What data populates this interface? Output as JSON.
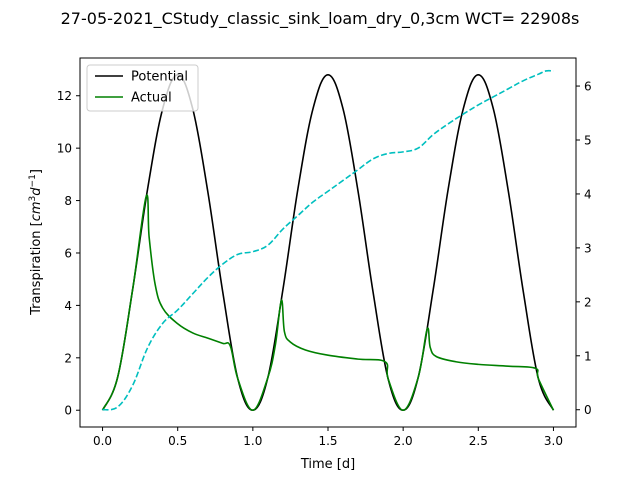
{
  "chart_data": {
    "type": "line",
    "title": "27-05-2021_CStudy_classic_sink_loam_dry_0,3cm  WCT= 22908s",
    "xlabel": "Time [d]",
    "ylabel": "Transpiration [",
    "ylabel_unit": "cm",
    "ylabel_unit_exp": "3",
    "ylabel_unit_d": "d",
    "ylabel_unit_d_exp": "−1",
    "ylabel_close": "]",
    "xlim": [
      -0.15,
      3.15
    ],
    "ylim_left": [
      -0.64,
      13.44
    ],
    "ylim_right": [
      -0.32,
      6.52
    ],
    "x_ticks": [
      0.0,
      0.5,
      1.0,
      1.5,
      2.0,
      2.5,
      3.0
    ],
    "x_tick_labels": [
      "0.0",
      "0.5",
      "1.0",
      "1.5",
      "2.0",
      "2.5",
      "3.0"
    ],
    "y_left_ticks": [
      0,
      2,
      4,
      6,
      8,
      10,
      12
    ],
    "y_left_tick_labels": [
      "0",
      "2",
      "4",
      "6",
      "8",
      "10",
      "12"
    ],
    "y_right_ticks": [
      0,
      1,
      2,
      3,
      4,
      5,
      6
    ],
    "y_right_tick_labels": [
      "0",
      "1",
      "2",
      "3",
      "4",
      "5",
      "6"
    ],
    "grid": false,
    "legend": {
      "position": "upper-left",
      "entries": [
        "Potential",
        "Actual"
      ]
    },
    "series": [
      {
        "name": "Potential",
        "axis": "left",
        "color": "#000000",
        "style": "solid",
        "points": [
          [
            0.0,
            0.0
          ],
          [
            0.1,
            1.25
          ],
          [
            0.2,
            4.6
          ],
          [
            0.3,
            8.45
          ],
          [
            0.4,
            11.5
          ],
          [
            0.5,
            12.8
          ],
          [
            0.6,
            11.5
          ],
          [
            0.7,
            8.35
          ],
          [
            0.8,
            4.5
          ],
          [
            0.9,
            1.2
          ],
          [
            1.0,
            0.0
          ],
          [
            1.1,
            1.25
          ],
          [
            1.2,
            4.6
          ],
          [
            1.3,
            8.45
          ],
          [
            1.4,
            11.5
          ],
          [
            1.5,
            12.8
          ],
          [
            1.6,
            11.5
          ],
          [
            1.7,
            8.35
          ],
          [
            1.8,
            4.5
          ],
          [
            1.9,
            1.2
          ],
          [
            2.0,
            0.0
          ],
          [
            2.1,
            1.25
          ],
          [
            2.2,
            4.6
          ],
          [
            2.3,
            8.45
          ],
          [
            2.4,
            11.5
          ],
          [
            2.5,
            12.8
          ],
          [
            2.6,
            11.5
          ],
          [
            2.7,
            8.35
          ],
          [
            2.8,
            4.5
          ],
          [
            2.9,
            1.2
          ],
          [
            3.0,
            0.0
          ]
        ]
      },
      {
        "name": "Actual",
        "axis": "left",
        "color": "#008000",
        "style": "solid",
        "points": [
          [
            0.0,
            0.0
          ],
          [
            0.1,
            1.25
          ],
          [
            0.2,
            4.6
          ],
          [
            0.29,
            8.15
          ],
          [
            0.31,
            6.6
          ],
          [
            0.35,
            4.8
          ],
          [
            0.4,
            3.9
          ],
          [
            0.5,
            3.3
          ],
          [
            0.6,
            2.95
          ],
          [
            0.7,
            2.75
          ],
          [
            0.8,
            2.55
          ],
          [
            0.85,
            2.45
          ],
          [
            0.9,
            1.2
          ],
          [
            1.0,
            0.0
          ],
          [
            1.1,
            1.25
          ],
          [
            1.15,
            2.5
          ],
          [
            1.19,
            4.2
          ],
          [
            1.21,
            3.0
          ],
          [
            1.25,
            2.6
          ],
          [
            1.35,
            2.3
          ],
          [
            1.5,
            2.1
          ],
          [
            1.7,
            1.95
          ],
          [
            1.88,
            1.85
          ],
          [
            1.9,
            1.2
          ],
          [
            2.0,
            0.0
          ],
          [
            2.1,
            1.25
          ],
          [
            2.16,
            3.1
          ],
          [
            2.18,
            2.4
          ],
          [
            2.22,
            2.05
          ],
          [
            2.35,
            1.85
          ],
          [
            2.5,
            1.75
          ],
          [
            2.7,
            1.68
          ],
          [
            2.88,
            1.6
          ],
          [
            2.9,
            1.2
          ],
          [
            3.0,
            0.0
          ]
        ]
      },
      {
        "axis": "right",
        "color": "#00bfbf",
        "style": "dashed",
        "points": [
          [
            0.0,
            0.0
          ],
          [
            0.1,
            0.05
          ],
          [
            0.2,
            0.45
          ],
          [
            0.3,
            1.15
          ],
          [
            0.4,
            1.6
          ],
          [
            0.5,
            1.85
          ],
          [
            0.6,
            2.15
          ],
          [
            0.7,
            2.45
          ],
          [
            0.8,
            2.7
          ],
          [
            0.9,
            2.88
          ],
          [
            1.0,
            2.93
          ],
          [
            1.1,
            3.05
          ],
          [
            1.2,
            3.35
          ],
          [
            1.3,
            3.6
          ],
          [
            1.4,
            3.85
          ],
          [
            1.5,
            4.05
          ],
          [
            1.6,
            4.25
          ],
          [
            1.7,
            4.45
          ],
          [
            1.8,
            4.65
          ],
          [
            1.9,
            4.75
          ],
          [
            2.0,
            4.78
          ],
          [
            2.1,
            4.85
          ],
          [
            2.2,
            5.1
          ],
          [
            2.3,
            5.3
          ],
          [
            2.4,
            5.48
          ],
          [
            2.5,
            5.65
          ],
          [
            2.6,
            5.8
          ],
          [
            2.7,
            5.95
          ],
          [
            2.8,
            6.1
          ],
          [
            2.9,
            6.22
          ],
          [
            2.95,
            6.28
          ],
          [
            3.0,
            6.28
          ]
        ]
      }
    ]
  }
}
